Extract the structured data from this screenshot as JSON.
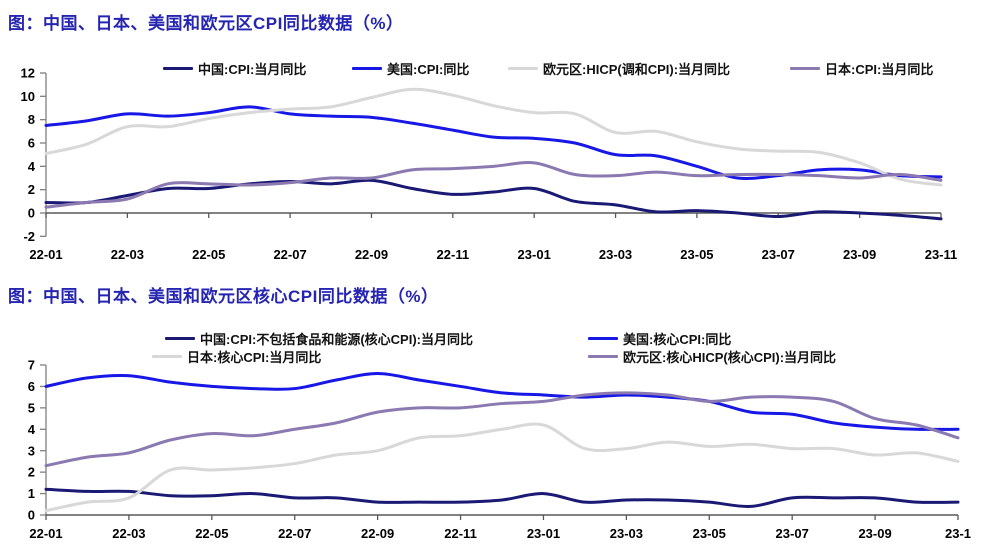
{
  "page": {
    "background": "#ffffff"
  },
  "colors": {
    "title": "#2525b2",
    "axis": "#808080",
    "zero_line": "#595959",
    "china": "#1a1a75",
    "us": "#1818e6",
    "eurozone": "#d8d8d8",
    "japan": "#8b79b1"
  },
  "chart_data": [
    {
      "type": "line",
      "title": "图：中国、日本、美国和欧元区CPI同比数据（%）",
      "x": [
        "22-01",
        "22-02",
        "22-03",
        "22-04",
        "22-05",
        "22-06",
        "22-07",
        "22-08",
        "22-09",
        "22-10",
        "22-11",
        "22-12",
        "23-01",
        "23-02",
        "23-03",
        "23-04",
        "23-05",
        "23-06",
        "23-07",
        "23-08",
        "23-09",
        "23-10",
        "23-11"
      ],
      "x_tick_labels": [
        "22-01",
        "22-03",
        "22-05",
        "22-07",
        "22-09",
        "22-11",
        "23-01",
        "23-03",
        "23-05",
        "23-07",
        "23-09",
        "23-11"
      ],
      "ylim": [
        -2,
        12
      ],
      "y_ticks": [
        -2,
        0,
        2,
        4,
        6,
        8,
        10,
        12
      ],
      "grid": false,
      "legend_position": "top",
      "series": [
        {
          "name": "中国:CPI:当月同比",
          "color": "#1a1a75",
          "values": [
            0.9,
            0.9,
            1.5,
            2.1,
            2.1,
            2.5,
            2.7,
            2.5,
            2.8,
            2.1,
            1.6,
            1.8,
            2.1,
            1.0,
            0.7,
            0.1,
            0.2,
            0.0,
            -0.3,
            0.1,
            0.0,
            -0.2,
            -0.5
          ]
        },
        {
          "name": "美国:CPI:同比",
          "color": "#1818e6",
          "values": [
            7.5,
            7.9,
            8.5,
            8.3,
            8.6,
            9.1,
            8.5,
            8.3,
            8.2,
            7.7,
            7.1,
            6.5,
            6.4,
            6.0,
            5.0,
            4.9,
            4.0,
            3.0,
            3.2,
            3.7,
            3.7,
            3.2,
            3.1
          ]
        },
        {
          "name": "欧元区:HICP(调和CPI):当月同比",
          "color": "#d8d8d8",
          "values": [
            5.1,
            5.9,
            7.4,
            7.4,
            8.1,
            8.6,
            8.9,
            9.1,
            9.9,
            10.6,
            10.1,
            9.2,
            8.6,
            8.5,
            6.9,
            7.0,
            6.1,
            5.5,
            5.3,
            5.2,
            4.3,
            2.9,
            2.4
          ]
        },
        {
          "name": "日本:CPI:当月同比",
          "color": "#8b79b1",
          "values": [
            0.5,
            0.9,
            1.2,
            2.5,
            2.5,
            2.4,
            2.6,
            3.0,
            3.0,
            3.7,
            3.8,
            4.0,
            4.3,
            3.3,
            3.2,
            3.5,
            3.2,
            3.3,
            3.3,
            3.2,
            3.0,
            3.3,
            2.8
          ]
        }
      ]
    },
    {
      "type": "line",
      "title": "图：中国、日本、美国和欧元区核心CPI同比数据（%）",
      "x": [
        "22-01",
        "22-02",
        "22-03",
        "22-04",
        "22-05",
        "22-06",
        "22-07",
        "22-08",
        "22-09",
        "22-10",
        "22-11",
        "22-12",
        "23-01",
        "23-02",
        "23-03",
        "23-04",
        "23-05",
        "23-06",
        "23-07",
        "23-08",
        "23-09",
        "23-10",
        "23-11"
      ],
      "x_tick_labels": [
        "22-01",
        "22-03",
        "22-05",
        "22-07",
        "22-09",
        "22-11",
        "23-01",
        "23-03",
        "23-05",
        "23-07",
        "23-09",
        "23-1"
      ],
      "ylim": [
        0,
        7
      ],
      "y_ticks": [
        0,
        1,
        2,
        3,
        4,
        5,
        6,
        7
      ],
      "grid": false,
      "legend_position": "top",
      "series": [
        {
          "name": "中国:CPI:不包括食品和能源(核心CPI):当月同比",
          "color": "#1a1a75",
          "values": [
            1.2,
            1.1,
            1.1,
            0.9,
            0.9,
            1.0,
            0.8,
            0.8,
            0.6,
            0.6,
            0.6,
            0.7,
            1.0,
            0.6,
            0.7,
            0.7,
            0.6,
            0.4,
            0.8,
            0.8,
            0.8,
            0.6,
            0.6
          ]
        },
        {
          "name": "美国:核心CPI:同比",
          "color": "#1818e6",
          "values": [
            6.0,
            6.4,
            6.5,
            6.2,
            6.0,
            5.9,
            5.9,
            6.3,
            6.6,
            6.3,
            6.0,
            5.7,
            5.6,
            5.5,
            5.6,
            5.5,
            5.3,
            4.8,
            4.7,
            4.3,
            4.1,
            4.0,
            4.0
          ]
        },
        {
          "name": "日本:核心CPI:当月同比",
          "color": "#d8d8d8",
          "values": [
            0.2,
            0.6,
            0.8,
            2.1,
            2.1,
            2.2,
            2.4,
            2.8,
            3.0,
            3.6,
            3.7,
            4.0,
            4.2,
            3.1,
            3.1,
            3.4,
            3.2,
            3.3,
            3.1,
            3.1,
            2.8,
            2.9,
            2.5
          ]
        },
        {
          "name": "欧元区:核心HICP(核心CPI):当月同比",
          "color": "#8b79b1",
          "values": [
            2.3,
            2.7,
            2.9,
            3.5,
            3.8,
            3.7,
            4.0,
            4.3,
            4.8,
            5.0,
            5.0,
            5.2,
            5.3,
            5.6,
            5.7,
            5.6,
            5.3,
            5.5,
            5.5,
            5.3,
            4.5,
            4.2,
            3.6
          ]
        }
      ]
    }
  ]
}
